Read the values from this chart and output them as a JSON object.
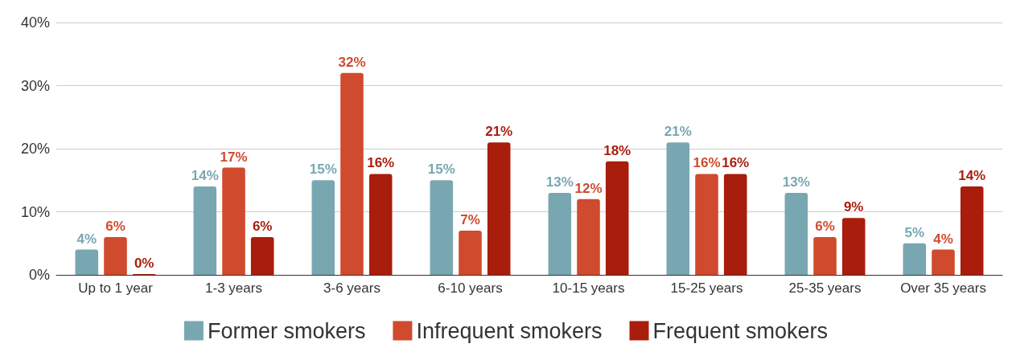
{
  "chart_data": {
    "type": "bar",
    "categories": [
      "Up to 1 year",
      "1-3 years",
      "3-6 years",
      "6-10 years",
      "10-15 years",
      "15-25 years",
      "25-35 years",
      "Over 35 years"
    ],
    "series": [
      {
        "name": "Former smokers",
        "color": "#78a7b2",
        "values": [
          4,
          14,
          15,
          15,
          13,
          21,
          13,
          5
        ],
        "value_labels": [
          "4%",
          "14%",
          "15%",
          "15%",
          "13%",
          "21%",
          "13%",
          "5%"
        ]
      },
      {
        "name": "Infrequent smokers",
        "color": "#d04a2e",
        "values": [
          6,
          17,
          32,
          7,
          12,
          16,
          6,
          4
        ],
        "value_labels": [
          "6%",
          "17%",
          "32%",
          "7%",
          "12%",
          "16%",
          "6%",
          "4%"
        ]
      },
      {
        "name": "Frequent smokers",
        "color": "#a91d0d",
        "values": [
          0,
          6,
          16,
          21,
          18,
          16,
          9,
          14
        ],
        "value_labels": [
          "0%",
          "6%",
          "16%",
          "21%",
          "18%",
          "16%",
          "9%",
          "14%"
        ]
      }
    ],
    "ylim": [
      0,
      40
    ],
    "yticks": [
      {
        "value": 0,
        "label": "0%"
      },
      {
        "value": 10,
        "label": "10%"
      },
      {
        "value": 20,
        "label": "20%"
      },
      {
        "value": 30,
        "label": "30%"
      },
      {
        "value": 40,
        "label": "40%"
      }
    ],
    "grid": "y",
    "legend": "bottom"
  }
}
